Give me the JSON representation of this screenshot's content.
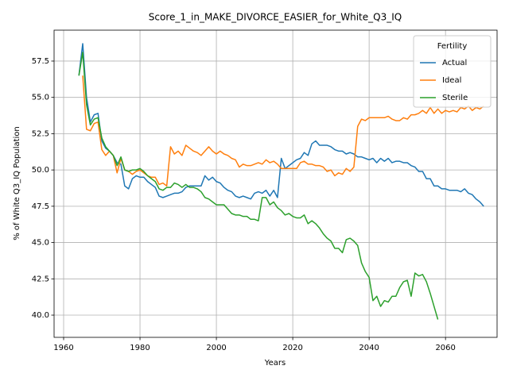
{
  "chart_data": {
    "type": "line",
    "title": "Score_1_in_MAKE_DIVORCE_EASIER_for_White_Q3_IQ",
    "xlabel": "Years",
    "ylabel": "% of White Q3_IQ Population",
    "legend_title": "Fertility",
    "legend": "upper right",
    "grid": true,
    "xlim": [
      1957.5,
      2073.5
    ],
    "xticks": [
      1960,
      1980,
      2000,
      2020,
      2040,
      2060
    ],
    "ylim": [
      38.47,
      59.63
    ],
    "yticks": [
      {
        "value": 40,
        "label": "40.0"
      },
      42.5,
      {
        "value": 45,
        "label": "45.0"
      },
      47.5,
      {
        "value": 50,
        "label": "50.0"
      },
      52.5,
      {
        "value": 55,
        "label": "55.0"
      },
      57.5
    ],
    "x": [
      1964,
      1965,
      1966,
      1967,
      1968,
      1969,
      1970,
      1971,
      1972,
      1973,
      1974,
      1975,
      1976,
      1977,
      1978,
      1979,
      1980,
      1981,
      1982,
      1983,
      1984,
      1985,
      1986,
      1987,
      1988,
      1989,
      1990,
      1991,
      1992,
      1993,
      1994,
      1995,
      1996,
      1997,
      1998,
      1999,
      2000,
      2001,
      2002,
      2003,
      2004,
      2005,
      2006,
      2007,
      2008,
      2009,
      2010,
      2011,
      2012,
      2013,
      2014,
      2015,
      2016,
      2017,
      2018,
      2019,
      2020,
      2021,
      2022,
      2023,
      2024,
      2025,
      2026,
      2027,
      2028,
      2029,
      2030,
      2031,
      2032,
      2033,
      2034,
      2035,
      2036,
      2037,
      2038,
      2039,
      2040,
      2041,
      2042,
      2043,
      2044,
      2045,
      2046,
      2047,
      2048,
      2049,
      2050,
      2051,
      2052,
      2053,
      2054,
      2055,
      2056,
      2057,
      2058,
      2059,
      2060,
      2061,
      2062,
      2063,
      2064,
      2065,
      2066,
      2067,
      2068,
      2069,
      2070
    ],
    "series": [
      {
        "name": "Actual",
        "color": "#1f77b4",
        "values": [
          56.5,
          58.7,
          55.0,
          53.3,
          53.8,
          53.9,
          52.0,
          51.5,
          51.3,
          51.0,
          50.5,
          50.4,
          48.9,
          48.7,
          49.4,
          49.6,
          49.5,
          49.5,
          49.2,
          49.0,
          48.8,
          48.2,
          48.1,
          48.2,
          48.3,
          48.4,
          48.4,
          48.5,
          48.8,
          48.9,
          48.9,
          48.9,
          48.9,
          49.6,
          49.3,
          49.5,
          49.2,
          49.1,
          48.8,
          48.6,
          48.5,
          48.2,
          48.1,
          48.2,
          48.1,
          48.0,
          48.4,
          48.5,
          48.4,
          48.6,
          48.2,
          48.6,
          48.1,
          50.8,
          50.1,
          50.3,
          50.5,
          50.7,
          50.8,
          51.2,
          51.0,
          51.8,
          52.0,
          51.7,
          51.7,
          51.7,
          51.6,
          51.4,
          51.3,
          51.3,
          51.1,
          51.2,
          51.1,
          50.9,
          50.9,
          50.8,
          50.7,
          50.8,
          50.5,
          50.8,
          50.6,
          50.8,
          50.5,
          50.6,
          50.6,
          50.5,
          50.5,
          50.3,
          50.2,
          49.9,
          49.9,
          49.4,
          49.4,
          48.9,
          48.9,
          48.7,
          48.7,
          48.6,
          48.6,
          48.6,
          48.5,
          48.7,
          48.4,
          48.3,
          48.0,
          47.8,
          47.5
        ]
      },
      {
        "name": "Ideal",
        "color": "#ff7f0e",
        "values": [
          null,
          56.5,
          52.8,
          52.7,
          53.2,
          53.3,
          51.4,
          51.0,
          51.3,
          51.0,
          49.8,
          50.8,
          50.0,
          49.9,
          49.7,
          49.9,
          50.0,
          49.8,
          49.6,
          49.5,
          49.5,
          49.0,
          49.1,
          48.9,
          51.6,
          51.1,
          51.3,
          51.0,
          51.7,
          51.5,
          51.3,
          51.2,
          51.0,
          51.3,
          51.6,
          51.3,
          51.1,
          51.3,
          51.1,
          51.0,
          50.8,
          50.7,
          50.2,
          50.4,
          50.3,
          50.3,
          50.4,
          50.5,
          50.4,
          50.7,
          50.5,
          50.6,
          50.4,
          50.1,
          50.1,
          50.1,
          50.1,
          50.1,
          50.5,
          50.6,
          50.4,
          50.4,
          50.3,
          50.3,
          50.2,
          49.9,
          50.0,
          49.6,
          49.8,
          49.7,
          50.1,
          49.9,
          50.2,
          53.0,
          53.5,
          53.4,
          53.6,
          53.6,
          53.6,
          53.6,
          53.6,
          53.7,
          53.5,
          53.4,
          53.4,
          53.6,
          53.5,
          53.8,
          53.8,
          53.9,
          54.1,
          53.9,
          54.3,
          53.9,
          54.2,
          53.9,
          54.1,
          54.0,
          54.1,
          54.0,
          54.3,
          54.2,
          54.4,
          54.1,
          54.3,
          54.2,
          54.4
        ]
      },
      {
        "name": "Sterile",
        "color": "#2ca02c",
        "values": [
          56.5,
          58.1,
          54.5,
          53.1,
          53.5,
          53.6,
          52.2,
          51.6,
          51.3,
          51.0,
          50.3,
          50.9,
          50.0,
          49.9,
          50.0,
          50.0,
          50.1,
          49.9,
          49.6,
          49.4,
          49.2,
          48.7,
          48.6,
          48.8,
          48.8,
          49.1,
          49.0,
          48.8,
          49.0,
          48.8,
          48.8,
          48.7,
          48.5,
          48.1,
          48.0,
          47.8,
          47.6,
          47.6,
          47.6,
          47.3,
          47.0,
          46.9,
          46.9,
          46.8,
          46.8,
          46.6,
          46.6,
          46.5,
          48.1,
          48.1,
          47.6,
          47.8,
          47.4,
          47.2,
          46.9,
          47.0,
          46.8,
          46.7,
          46.7,
          46.9,
          46.3,
          46.5,
          46.3,
          46.0,
          45.6,
          45.3,
          45.1,
          44.6,
          44.6,
          44.3,
          45.2,
          45.3,
          45.1,
          44.8,
          43.6,
          43.0,
          42.6,
          41.0,
          41.3,
          40.6,
          41.0,
          40.9,
          41.3,
          41.3,
          41.9,
          42.3,
          42.4,
          41.3,
          42.9,
          42.7,
          42.8,
          42.3,
          41.5,
          40.6,
          39.7,
          null,
          null,
          null,
          null,
          null,
          null,
          null,
          null,
          null,
          null,
          null,
          null
        ]
      }
    ]
  }
}
